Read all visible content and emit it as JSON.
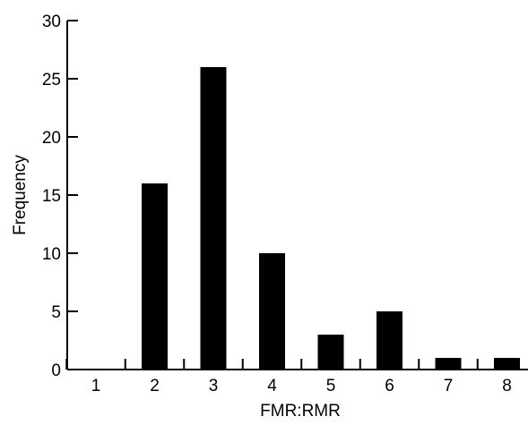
{
  "chart_data": {
    "type": "bar",
    "categories": [
      "1",
      "2",
      "3",
      "4",
      "5",
      "6",
      "7",
      "8"
    ],
    "values": [
      0,
      16,
      26,
      10,
      3,
      5,
      1,
      1
    ],
    "title": "",
    "xlabel": "FMR:RMR",
    "ylabel": "Frequency",
    "ylim": [
      0,
      30
    ],
    "yticks": [
      "0",
      "5",
      "10",
      "15",
      "20",
      "25",
      "30"
    ],
    "grid": false,
    "bar_color": "#000000"
  }
}
